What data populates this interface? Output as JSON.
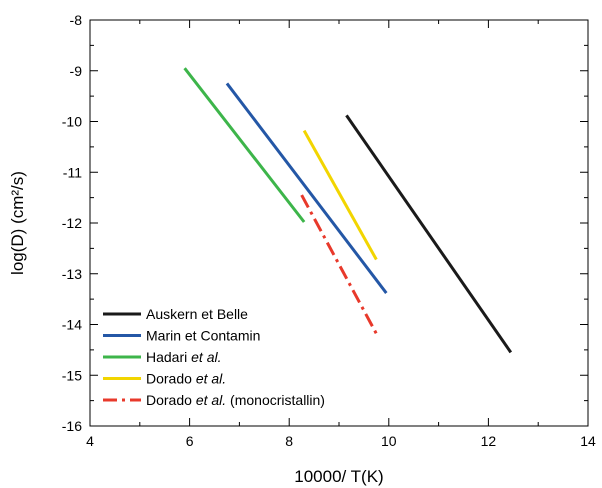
{
  "chart_data": {
    "type": "line",
    "title": "",
    "xlabel": "10000/ T(K)",
    "ylabel": "log(D) (cm²/s)",
    "xlim": [
      4,
      14
    ],
    "ylim": [
      -16,
      -8
    ],
    "x_ticks": [
      4,
      6,
      8,
      10,
      12,
      14
    ],
    "y_ticks": [
      -16,
      -15,
      -14,
      -13,
      -12,
      -11,
      -10,
      -9,
      -8
    ],
    "grid": false,
    "legend_position": "bottom-left",
    "series": [
      {
        "name": "Auskern et Belle",
        "color": "#1a1a1a",
        "dash": "solid",
        "x": [
          9.15,
          12.45
        ],
        "y": [
          -9.88,
          -14.55
        ]
      },
      {
        "name": "Marin et Contamin",
        "color": "#2457a6",
        "dash": "solid",
        "x": [
          6.75,
          9.95
        ],
        "y": [
          -9.25,
          -13.38
        ]
      },
      {
        "name": "Hadari et al.",
        "color": "#3db54a",
        "dash": "solid",
        "x": [
          5.9,
          8.3
        ],
        "y": [
          -8.95,
          -11.98
        ]
      },
      {
        "name": "Dorado et al.",
        "color": "#f2d500",
        "dash": "solid",
        "x": [
          8.3,
          9.75
        ],
        "y": [
          -10.18,
          -12.72
        ]
      },
      {
        "name": "Dorado et al. (monocristallin)",
        "color": "#e8392b",
        "dash": "dashdot",
        "x": [
          8.25,
          9.75
        ],
        "y": [
          -11.45,
          -14.18
        ]
      }
    ]
  },
  "legend_entries": [
    {
      "plain": "Auskern et Belle",
      "italic": "",
      "suffix": ""
    },
    {
      "plain": "Marin et Contamin",
      "italic": "",
      "suffix": ""
    },
    {
      "plain": "Hadari ",
      "italic": "et al.",
      "suffix": ""
    },
    {
      "plain": "Dorado ",
      "italic": "et al.",
      "suffix": ""
    },
    {
      "plain": "Dorado ",
      "italic": "et al.",
      "suffix": " (monocristallin)"
    }
  ]
}
